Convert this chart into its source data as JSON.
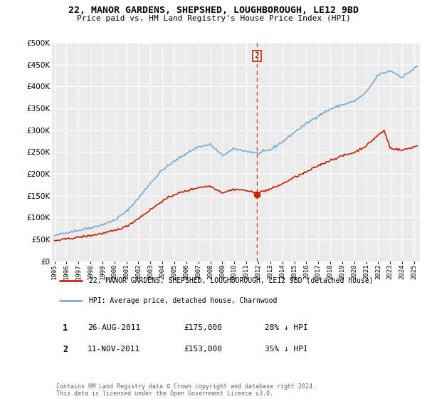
{
  "title": "22, MANOR GARDENS, SHEPSHED, LOUGHBOROUGH, LE12 9BD",
  "subtitle": "Price paid vs. HM Land Registry's House Price Index (HPI)",
  "background_color": "#ffffff",
  "plot_bg_color": "#ebebeb",
  "grid_color": "#ffffff",
  "hpi_color": "#7aaed6",
  "price_color": "#cc2200",
  "dashed_line_color": "#cc2200",
  "transaction1": {
    "label": "1",
    "date": "26-AUG-2011",
    "price": "£175,000",
    "hpi": "28% ↓ HPI"
  },
  "transaction2": {
    "label": "2",
    "date": "11-NOV-2011",
    "price": "£153,000",
    "hpi": "35% ↓ HPI"
  },
  "legend_line1": "22, MANOR GARDENS, SHEPSHED, LOUGHBOROUGH, LE12 9BD (detached house)",
  "legend_line2": "HPI: Average price, detached house, Charnwood",
  "footer": "Contains HM Land Registry data © Crown copyright and database right 2024.\nThis data is licensed under the Open Government Licence v3.0.",
  "ylim": [
    0,
    500000
  ],
  "yticks": [
    0,
    50000,
    100000,
    150000,
    200000,
    250000,
    300000,
    350000,
    400000,
    450000,
    500000
  ],
  "xlim_start": 1994.8,
  "xlim_end": 2025.5
}
